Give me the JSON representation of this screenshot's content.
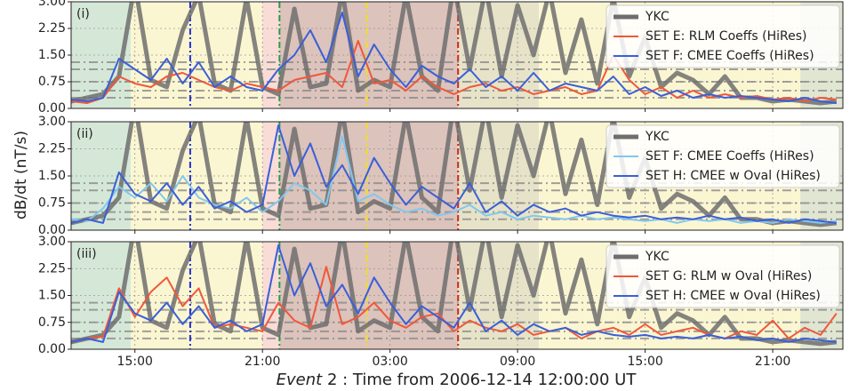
{
  "y_label": "dB/dt (nT/s)",
  "x_label_emph": "Event",
  "x_label": " 2 : Time from 2006-12-14 12:00:00 UT",
  "chart_data": [
    {
      "type": "line",
      "panel_label": "(i)",
      "legend": "upper right",
      "grid": true,
      "xlim": [
        0,
        36.3
      ],
      "xticks": [
        3,
        9,
        15,
        21,
        27,
        33
      ],
      "ylim": [
        0,
        3
      ],
      "yticks": [
        {
          "value": 0,
          "label": "0.00"
        },
        {
          "value": 0.75,
          "label": "0.75"
        },
        {
          "value": 1.5,
          "label": "1.50"
        },
        {
          "value": 2.25,
          "label": "2.25"
        },
        {
          "value": 3,
          "label": "3.00"
        }
      ],
      "hlines": [
        0.3,
        0.5,
        0.75,
        1.1,
        1.3
      ],
      "regions": [
        {
          "x": [
            0,
            2.8
          ],
          "color": "#d5e8d8"
        },
        {
          "x": [
            2.8,
            9.0
          ],
          "color": "#fbf6d2"
        },
        {
          "x": [
            9.0,
            9.8
          ],
          "color": "#f9dcd6"
        },
        {
          "x": [
            9.8,
            18.2
          ],
          "color": "#dcc3bb"
        },
        {
          "x": [
            18.2,
            22.0
          ],
          "color": "#e6e3c9"
        },
        {
          "x": [
            22.0,
            34.3
          ],
          "color": "#fbf6d2"
        },
        {
          "x": [
            34.3,
            36.3
          ],
          "color": "#e1e6d2"
        }
      ],
      "markers": [
        {
          "x": 5.6,
          "color": "#1f2fd0"
        },
        {
          "x": 9.8,
          "color": "#2a9a50"
        },
        {
          "x": 13.9,
          "color": "#f0e020"
        },
        {
          "x": 18.2,
          "color": "#d02a1a"
        }
      ],
      "x": [
        0,
        0.75,
        1.5,
        2.25,
        3,
        3.75,
        4.5,
        5.25,
        6,
        6.75,
        7.5,
        8.25,
        9,
        9.75,
        10.5,
        11.25,
        12,
        12.75,
        13.5,
        14.25,
        15,
        15.75,
        16.5,
        17.25,
        18,
        18.75,
        19.5,
        20.25,
        21,
        21.75,
        22.5,
        23.25,
        24,
        24.75,
        25.5,
        26.25,
        27,
        27.75,
        28.5,
        29.25,
        30,
        30.75,
        31.5,
        32.25,
        33,
        33.75,
        34.5,
        35.25,
        36
      ],
      "series": [
        {
          "name": "YKC",
          "color": "#6e6e6e",
          "width": 5,
          "values": [
            0.2,
            0.3,
            0.4,
            0.9,
            3.5,
            0.8,
            0.6,
            2.2,
            3.2,
            0.7,
            0.5,
            3.1,
            0.6,
            0.4,
            2.8,
            0.6,
            0.7,
            3.3,
            0.5,
            0.8,
            0.6,
            3.2,
            0.9,
            0.5,
            3.5,
            1.1,
            3.4,
            0.9,
            2.9,
            1.5,
            3.3,
            1.0,
            2.5,
            0.7,
            3.1,
            0.9,
            2.0,
            0.6,
            1.0,
            0.8,
            0.4,
            0.9,
            0.3,
            0.3,
            0.2,
            0.25,
            0.2,
            0.15,
            0.2
          ]
        },
        {
          "name": "SET E: RLM Coeffs (HiRes)",
          "color": "#f0583a",
          "width": 2,
          "values": [
            0.2,
            0.15,
            0.3,
            0.9,
            0.7,
            0.6,
            0.9,
            1.0,
            0.8,
            0.6,
            0.5,
            0.7,
            0.6,
            0.5,
            0.8,
            0.9,
            1.0,
            0.6,
            1.9,
            0.7,
            0.8,
            0.5,
            0.9,
            0.6,
            0.4,
            0.6,
            0.7,
            0.5,
            0.6,
            0.4,
            0.5,
            0.6,
            0.4,
            0.5,
            1.5,
            0.8,
            0.4,
            0.6,
            0.3,
            0.5,
            0.3,
            0.4,
            0.3,
            0.35,
            0.25,
            0.3,
            0.2,
            0.3,
            0.25
          ]
        },
        {
          "name": "SET F: CMEE Coeffs (HiRes)",
          "color": "#3a5fd8",
          "width": 2,
          "values": [
            0.25,
            0.2,
            0.3,
            1.4,
            1.1,
            0.8,
            1.4,
            0.7,
            1.3,
            0.6,
            0.9,
            0.6,
            0.5,
            1.1,
            1.5,
            2.2,
            1.3,
            2.7,
            0.9,
            1.8,
            1.1,
            0.6,
            1.2,
            0.9,
            0.7,
            1.1,
            0.6,
            0.9,
            0.5,
            1.0,
            0.5,
            0.7,
            0.6,
            0.5,
            0.9,
            0.4,
            0.6,
            0.35,
            0.5,
            0.3,
            0.4,
            0.3,
            0.35,
            0.3,
            0.25,
            0.2,
            0.3,
            0.2,
            0.15
          ]
        }
      ]
    },
    {
      "type": "line",
      "panel_label": "(ii)",
      "legend": "upper right",
      "grid": true,
      "xlim": [
        0,
        36.3
      ],
      "xticks": [
        3,
        9,
        15,
        21,
        27,
        33
      ],
      "ylim": [
        0,
        3
      ],
      "yticks": [
        {
          "value": 0,
          "label": "0.00"
        },
        {
          "value": 0.75,
          "label": "0.75"
        },
        {
          "value": 1.5,
          "label": "1.50"
        },
        {
          "value": 2.25,
          "label": "2.25"
        },
        {
          "value": 3,
          "label": "3.00"
        }
      ],
      "hlines": [
        0.3,
        0.5,
        0.75,
        1.1,
        1.3
      ],
      "regions": [
        {
          "x": [
            0,
            2.8
          ],
          "color": "#d5e8d8"
        },
        {
          "x": [
            2.8,
            9.0
          ],
          "color": "#fbf6d2"
        },
        {
          "x": [
            9.0,
            9.8
          ],
          "color": "#f9dcd6"
        },
        {
          "x": [
            9.8,
            18.2
          ],
          "color": "#dcc3bb"
        },
        {
          "x": [
            18.2,
            22.0
          ],
          "color": "#e6e3c9"
        },
        {
          "x": [
            22.0,
            34.3
          ],
          "color": "#fbf6d2"
        },
        {
          "x": [
            34.3,
            36.3
          ],
          "color": "#e1e6d2"
        }
      ],
      "markers": [
        {
          "x": 5.6,
          "color": "#1f2fd0"
        },
        {
          "x": 9.8,
          "color": "#2a9a50"
        },
        {
          "x": 13.9,
          "color": "#f0e020"
        },
        {
          "x": 18.2,
          "color": "#d02a1a"
        }
      ],
      "x": [
        0,
        0.75,
        1.5,
        2.25,
        3,
        3.75,
        4.5,
        5.25,
        6,
        6.75,
        7.5,
        8.25,
        9,
        9.75,
        10.5,
        11.25,
        12,
        12.75,
        13.5,
        14.25,
        15,
        15.75,
        16.5,
        17.25,
        18,
        18.75,
        19.5,
        20.25,
        21,
        21.75,
        22.5,
        23.25,
        24,
        24.75,
        25.5,
        26.25,
        27,
        27.75,
        28.5,
        29.25,
        30,
        30.75,
        31.5,
        32.25,
        33,
        33.75,
        34.5,
        35.25,
        36
      ],
      "series": [
        {
          "name": "YKC",
          "color": "#6e6e6e",
          "width": 5,
          "values": [
            0.2,
            0.3,
            0.4,
            0.9,
            3.5,
            0.8,
            0.6,
            2.2,
            3.2,
            0.7,
            0.5,
            3.1,
            0.6,
            0.4,
            2.8,
            0.6,
            0.7,
            3.3,
            0.5,
            0.8,
            0.6,
            3.2,
            0.9,
            0.5,
            3.5,
            1.1,
            3.4,
            0.9,
            2.9,
            1.5,
            3.3,
            1.0,
            2.5,
            0.7,
            3.1,
            0.9,
            2.0,
            0.6,
            1.0,
            0.8,
            0.4,
            0.9,
            0.3,
            0.3,
            0.2,
            0.25,
            0.2,
            0.15,
            0.2
          ]
        },
        {
          "name": "SET F: CMEE Coeffs (HiRes)",
          "color": "#80c8f0",
          "width": 2,
          "values": [
            0.3,
            0.25,
            0.6,
            1.2,
            0.9,
            1.3,
            0.8,
            1.5,
            0.9,
            0.7,
            0.6,
            0.9,
            0.5,
            0.8,
            1.3,
            1.1,
            0.7,
            2.6,
            0.8,
            1.0,
            0.7,
            0.5,
            0.6,
            0.4,
            0.5,
            0.7,
            0.4,
            0.5,
            0.3,
            0.4,
            0.35,
            0.3,
            0.4,
            0.3,
            0.35,
            0.3,
            0.25,
            0.3,
            0.2,
            0.3,
            0.25,
            0.3,
            0.2,
            0.25,
            0.2,
            0.3,
            0.25,
            0.2,
            0.25
          ]
        },
        {
          "name": "SET H: CMEE w Oval (HiRes)",
          "color": "#3a5fd8",
          "width": 2,
          "values": [
            0.2,
            0.3,
            0.2,
            1.6,
            1.0,
            0.8,
            1.3,
            0.7,
            1.2,
            0.6,
            0.8,
            0.5,
            0.7,
            2.9,
            1.5,
            2.4,
            1.2,
            1.8,
            1.0,
            2.0,
            1.3,
            0.7,
            1.2,
            0.9,
            0.6,
            1.3,
            0.5,
            0.8,
            0.4,
            0.7,
            0.5,
            0.6,
            0.4,
            0.5,
            0.4,
            0.35,
            0.4,
            0.3,
            0.35,
            0.3,
            0.4,
            0.3,
            0.35,
            0.25,
            0.3,
            0.2,
            0.3,
            0.25,
            0.2
          ]
        }
      ]
    },
    {
      "type": "line",
      "panel_label": "(iii)",
      "legend": "upper right",
      "grid": true,
      "xlim": [
        0,
        36.3
      ],
      "xticks": [
        {
          "value": 3,
          "label": "15:00"
        },
        {
          "value": 9,
          "label": "21:00"
        },
        {
          "value": 15,
          "label": "03:00"
        },
        {
          "value": 21,
          "label": "09:00"
        },
        {
          "value": 27,
          "label": "15:00"
        },
        {
          "value": 33,
          "label": "21:00"
        }
      ],
      "ylim": [
        0,
        3
      ],
      "yticks": [
        {
          "value": 0,
          "label": "0.00"
        },
        {
          "value": 0.75,
          "label": "0.75"
        },
        {
          "value": 1.5,
          "label": "1.50"
        },
        {
          "value": 2.25,
          "label": "2.25"
        },
        {
          "value": 3,
          "label": "3.00"
        }
      ],
      "hlines": [
        0.3,
        0.5,
        0.75,
        1.1,
        1.3
      ],
      "regions": [
        {
          "x": [
            0,
            2.8
          ],
          "color": "#d5e8d8"
        },
        {
          "x": [
            2.8,
            9.0
          ],
          "color": "#fbf6d2"
        },
        {
          "x": [
            9.0,
            9.8
          ],
          "color": "#f9dcd6"
        },
        {
          "x": [
            9.8,
            18.2
          ],
          "color": "#dcc3bb"
        },
        {
          "x": [
            18.2,
            22.0
          ],
          "color": "#e6e3c9"
        },
        {
          "x": [
            22.0,
            34.3
          ],
          "color": "#fbf6d2"
        },
        {
          "x": [
            34.3,
            36.3
          ],
          "color": "#e1e6d2"
        }
      ],
      "markers": [
        {
          "x": 5.6,
          "color": "#1f2fd0"
        },
        {
          "x": 9.8,
          "color": "#2a9a50"
        },
        {
          "x": 13.9,
          "color": "#f0e020"
        },
        {
          "x": 18.2,
          "color": "#d02a1a"
        }
      ],
      "x": [
        0,
        0.75,
        1.5,
        2.25,
        3,
        3.75,
        4.5,
        5.25,
        6,
        6.75,
        7.5,
        8.25,
        9,
        9.75,
        10.5,
        11.25,
        12,
        12.75,
        13.5,
        14.25,
        15,
        15.75,
        16.5,
        17.25,
        18,
        18.75,
        19.5,
        20.25,
        21,
        21.75,
        22.5,
        23.25,
        24,
        24.75,
        25.5,
        26.25,
        27,
        27.75,
        28.5,
        29.25,
        30,
        30.75,
        31.5,
        32.25,
        33,
        33.75,
        34.5,
        35.25,
        36
      ],
      "series": [
        {
          "name": "YKC",
          "color": "#6e6e6e",
          "width": 5,
          "values": [
            0.2,
            0.3,
            0.4,
            0.9,
            3.5,
            0.8,
            0.6,
            2.2,
            3.2,
            0.7,
            0.5,
            3.1,
            0.6,
            0.4,
            2.8,
            0.6,
            0.7,
            3.3,
            0.5,
            0.8,
            0.6,
            3.2,
            0.9,
            0.5,
            3.5,
            1.1,
            3.4,
            0.9,
            2.9,
            1.5,
            3.3,
            1.0,
            2.5,
            0.7,
            3.1,
            0.9,
            2.0,
            0.6,
            1.0,
            0.8,
            0.4,
            0.9,
            0.3,
            0.3,
            0.2,
            0.25,
            0.2,
            0.15,
            0.2
          ]
        },
        {
          "name": "SET G: RLM w Oval (HiRes)",
          "color": "#f0583a",
          "width": 2,
          "values": [
            0.2,
            0.3,
            0.35,
            1.7,
            0.9,
            1.6,
            2.0,
            1.2,
            1.7,
            0.6,
            0.7,
            0.6,
            0.5,
            1.3,
            0.8,
            0.6,
            2.3,
            0.7,
            0.9,
            1.3,
            0.8,
            0.6,
            0.9,
            1.0,
            0.5,
            0.8,
            0.6,
            0.5,
            0.7,
            0.4,
            0.5,
            0.6,
            0.3,
            0.5,
            0.6,
            0.4,
            0.7,
            0.4,
            0.5,
            0.6,
            0.4,
            0.3,
            0.5,
            0.4,
            0.8,
            0.3,
            0.6,
            0.4,
            1.0
          ]
        },
        {
          "name": "SET H: CMEE w Oval (HiRes)",
          "color": "#3a5fd8",
          "width": 2,
          "values": [
            0.2,
            0.3,
            0.2,
            1.6,
            1.0,
            0.8,
            1.3,
            0.7,
            1.2,
            0.6,
            0.8,
            0.5,
            0.7,
            2.9,
            1.5,
            2.4,
            1.2,
            1.8,
            1.0,
            2.0,
            1.3,
            0.7,
            1.2,
            0.9,
            0.6,
            1.3,
            0.5,
            0.8,
            0.4,
            0.7,
            0.5,
            0.6,
            0.4,
            0.5,
            0.4,
            0.35,
            0.4,
            0.3,
            0.35,
            0.3,
            0.4,
            0.3,
            0.35,
            0.25,
            0.3,
            0.2,
            0.3,
            0.25,
            0.2
          ]
        }
      ]
    }
  ]
}
